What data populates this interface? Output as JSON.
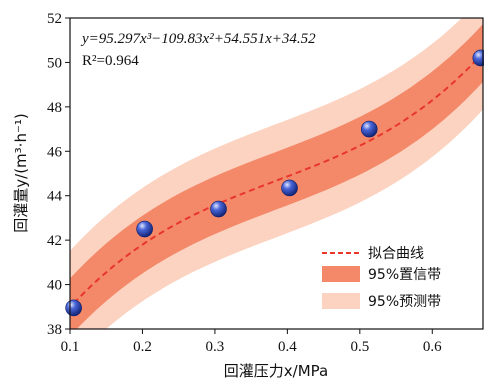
{
  "chart_data": {
    "type": "scatter",
    "xlabel": "回灌压力x/MPa",
    "ylabel": "回灌量y/(m³·h⁻¹)",
    "xlim": [
      0.1,
      0.67
    ],
    "ylim": [
      38,
      52
    ],
    "xticks": [
      "0.1",
      "0.2",
      "0.3",
      "0.4",
      "0.5",
      "0.6"
    ],
    "yticks": [
      "38",
      "40",
      "42",
      "44",
      "46",
      "48",
      "50",
      "52"
    ],
    "equation": "y=95.297x³−109.83x²+54.551x+34.52",
    "r_squared": "R²=0.964",
    "fit": {
      "a3": 95.297,
      "a2": -109.83,
      "a1": 54.551,
      "a0": 34.52
    },
    "confidence_halfwidth": 1.3,
    "prediction_halfwidth": 2.55,
    "points": [
      {
        "x": 0.105,
        "y": 38.95
      },
      {
        "x": 0.203,
        "y": 42.5
      },
      {
        "x": 0.305,
        "y": 43.4
      },
      {
        "x": 0.403,
        "y": 44.35
      },
      {
        "x": 0.513,
        "y": 47.0
      },
      {
        "x": 0.667,
        "y": 50.2
      }
    ],
    "legend": {
      "position": "bottom-right",
      "fit_label": "拟合曲线",
      "confidence_label": "95%置信带",
      "prediction_label": "95%预测带"
    },
    "colors": {
      "prediction_band": "#fcd3c1",
      "confidence_band": "#f4896a",
      "fit_line": "#e8372a",
      "point": "#2a45b8"
    }
  }
}
